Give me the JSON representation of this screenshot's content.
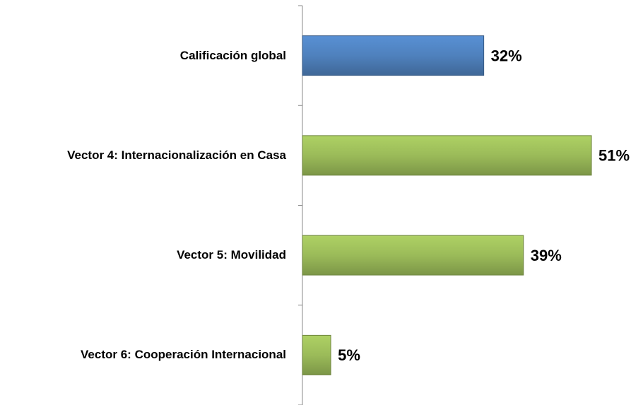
{
  "chart_data": {
    "type": "bar",
    "orientation": "horizontal",
    "categories": [
      "Calificación global",
      "Vector 4: Internacionalización en Casa",
      "Vector 5: Movilidad",
      "Vector 6: Cooperación Internacional"
    ],
    "values": [
      32,
      51,
      39,
      5
    ],
    "value_labels": [
      "32%",
      "51%",
      "39%",
      "5%"
    ],
    "colors": [
      "#4f81bd",
      "#9bbb59",
      "#9bbb59",
      "#9bbb59"
    ]
  }
}
